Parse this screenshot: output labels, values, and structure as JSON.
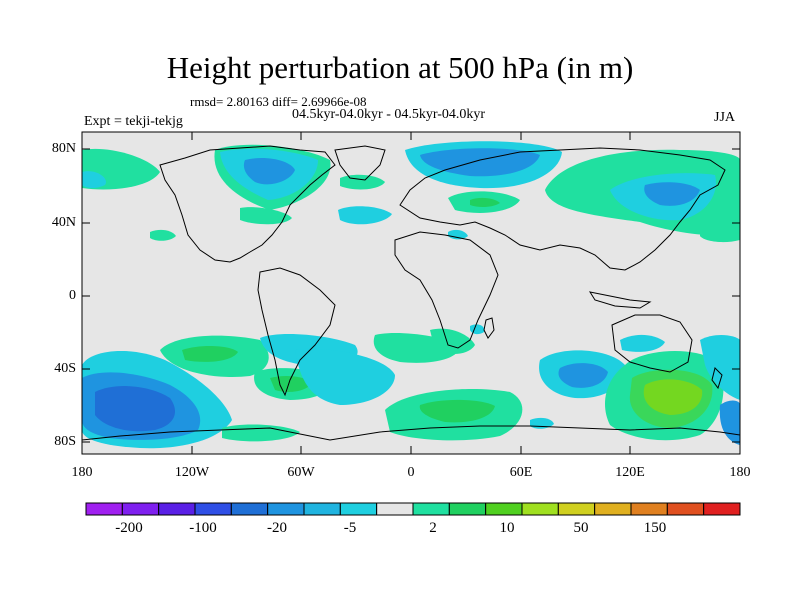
{
  "title": "Height perturbation at 500 hPa (in m)",
  "stats": "rmsd= 2.80163 diff= 2.69966e-08",
  "periods": "04.5kyr-04.0kyr - 04.5kyr-04.0kyr",
  "experiment": "Expt = tekji-tekjg",
  "season": "JJA",
  "map": {
    "lat_labels": [
      "80N",
      "40N",
      "0",
      "40S",
      "80S"
    ],
    "lon_labels": [
      "180",
      "120W",
      "60W",
      "0",
      "60E",
      "120E",
      "180"
    ],
    "ocean_color": "#e6e6e6",
    "coastline_color": "#000000"
  },
  "colorbar": {
    "colors": [
      "#a020f0",
      "#7f20ef",
      "#5a20e6",
      "#2f4fe6",
      "#1f6fd6",
      "#1f94e0",
      "#20b4e0",
      "#1fcfe0",
      "#e6e6e6",
      "#20e0a0",
      "#20d060",
      "#50d020",
      "#a0e020",
      "#d0d020",
      "#e0b020",
      "#e08020",
      "#e05020",
      "#e02020"
    ],
    "labels": [
      "-200",
      "-100",
      "-20",
      "-5",
      "2",
      "10",
      "50",
      "150"
    ]
  }
}
